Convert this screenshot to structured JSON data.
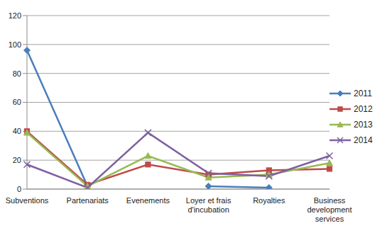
{
  "chart_data": {
    "type": "line",
    "categories": [
      "Subventions",
      "Partenariats",
      "Evenements",
      "Loyer et frais d'incubation",
      "Royalties",
      "Business development services"
    ],
    "series": [
      {
        "name": "2011",
        "color": "#4a7ebb",
        "marker": "diamond",
        "values": [
          96,
          2,
          null,
          2,
          1,
          null
        ]
      },
      {
        "name": "2012",
        "color": "#be4b48",
        "marker": "square",
        "values": [
          40,
          3,
          17,
          10,
          13,
          14
        ]
      },
      {
        "name": "2013",
        "color": "#98b954",
        "marker": "triangle",
        "values": [
          39,
          2,
          23,
          8,
          10,
          18
        ]
      },
      {
        "name": "2014",
        "color": "#7d60a0",
        "marker": "x",
        "values": [
          17,
          1,
          39,
          11,
          9,
          23
        ]
      }
    ],
    "ylim": [
      0,
      120
    ],
    "yticks": [
      0,
      20,
      40,
      60,
      80,
      100,
      120
    ],
    "grid": true,
    "legend": "right"
  }
}
